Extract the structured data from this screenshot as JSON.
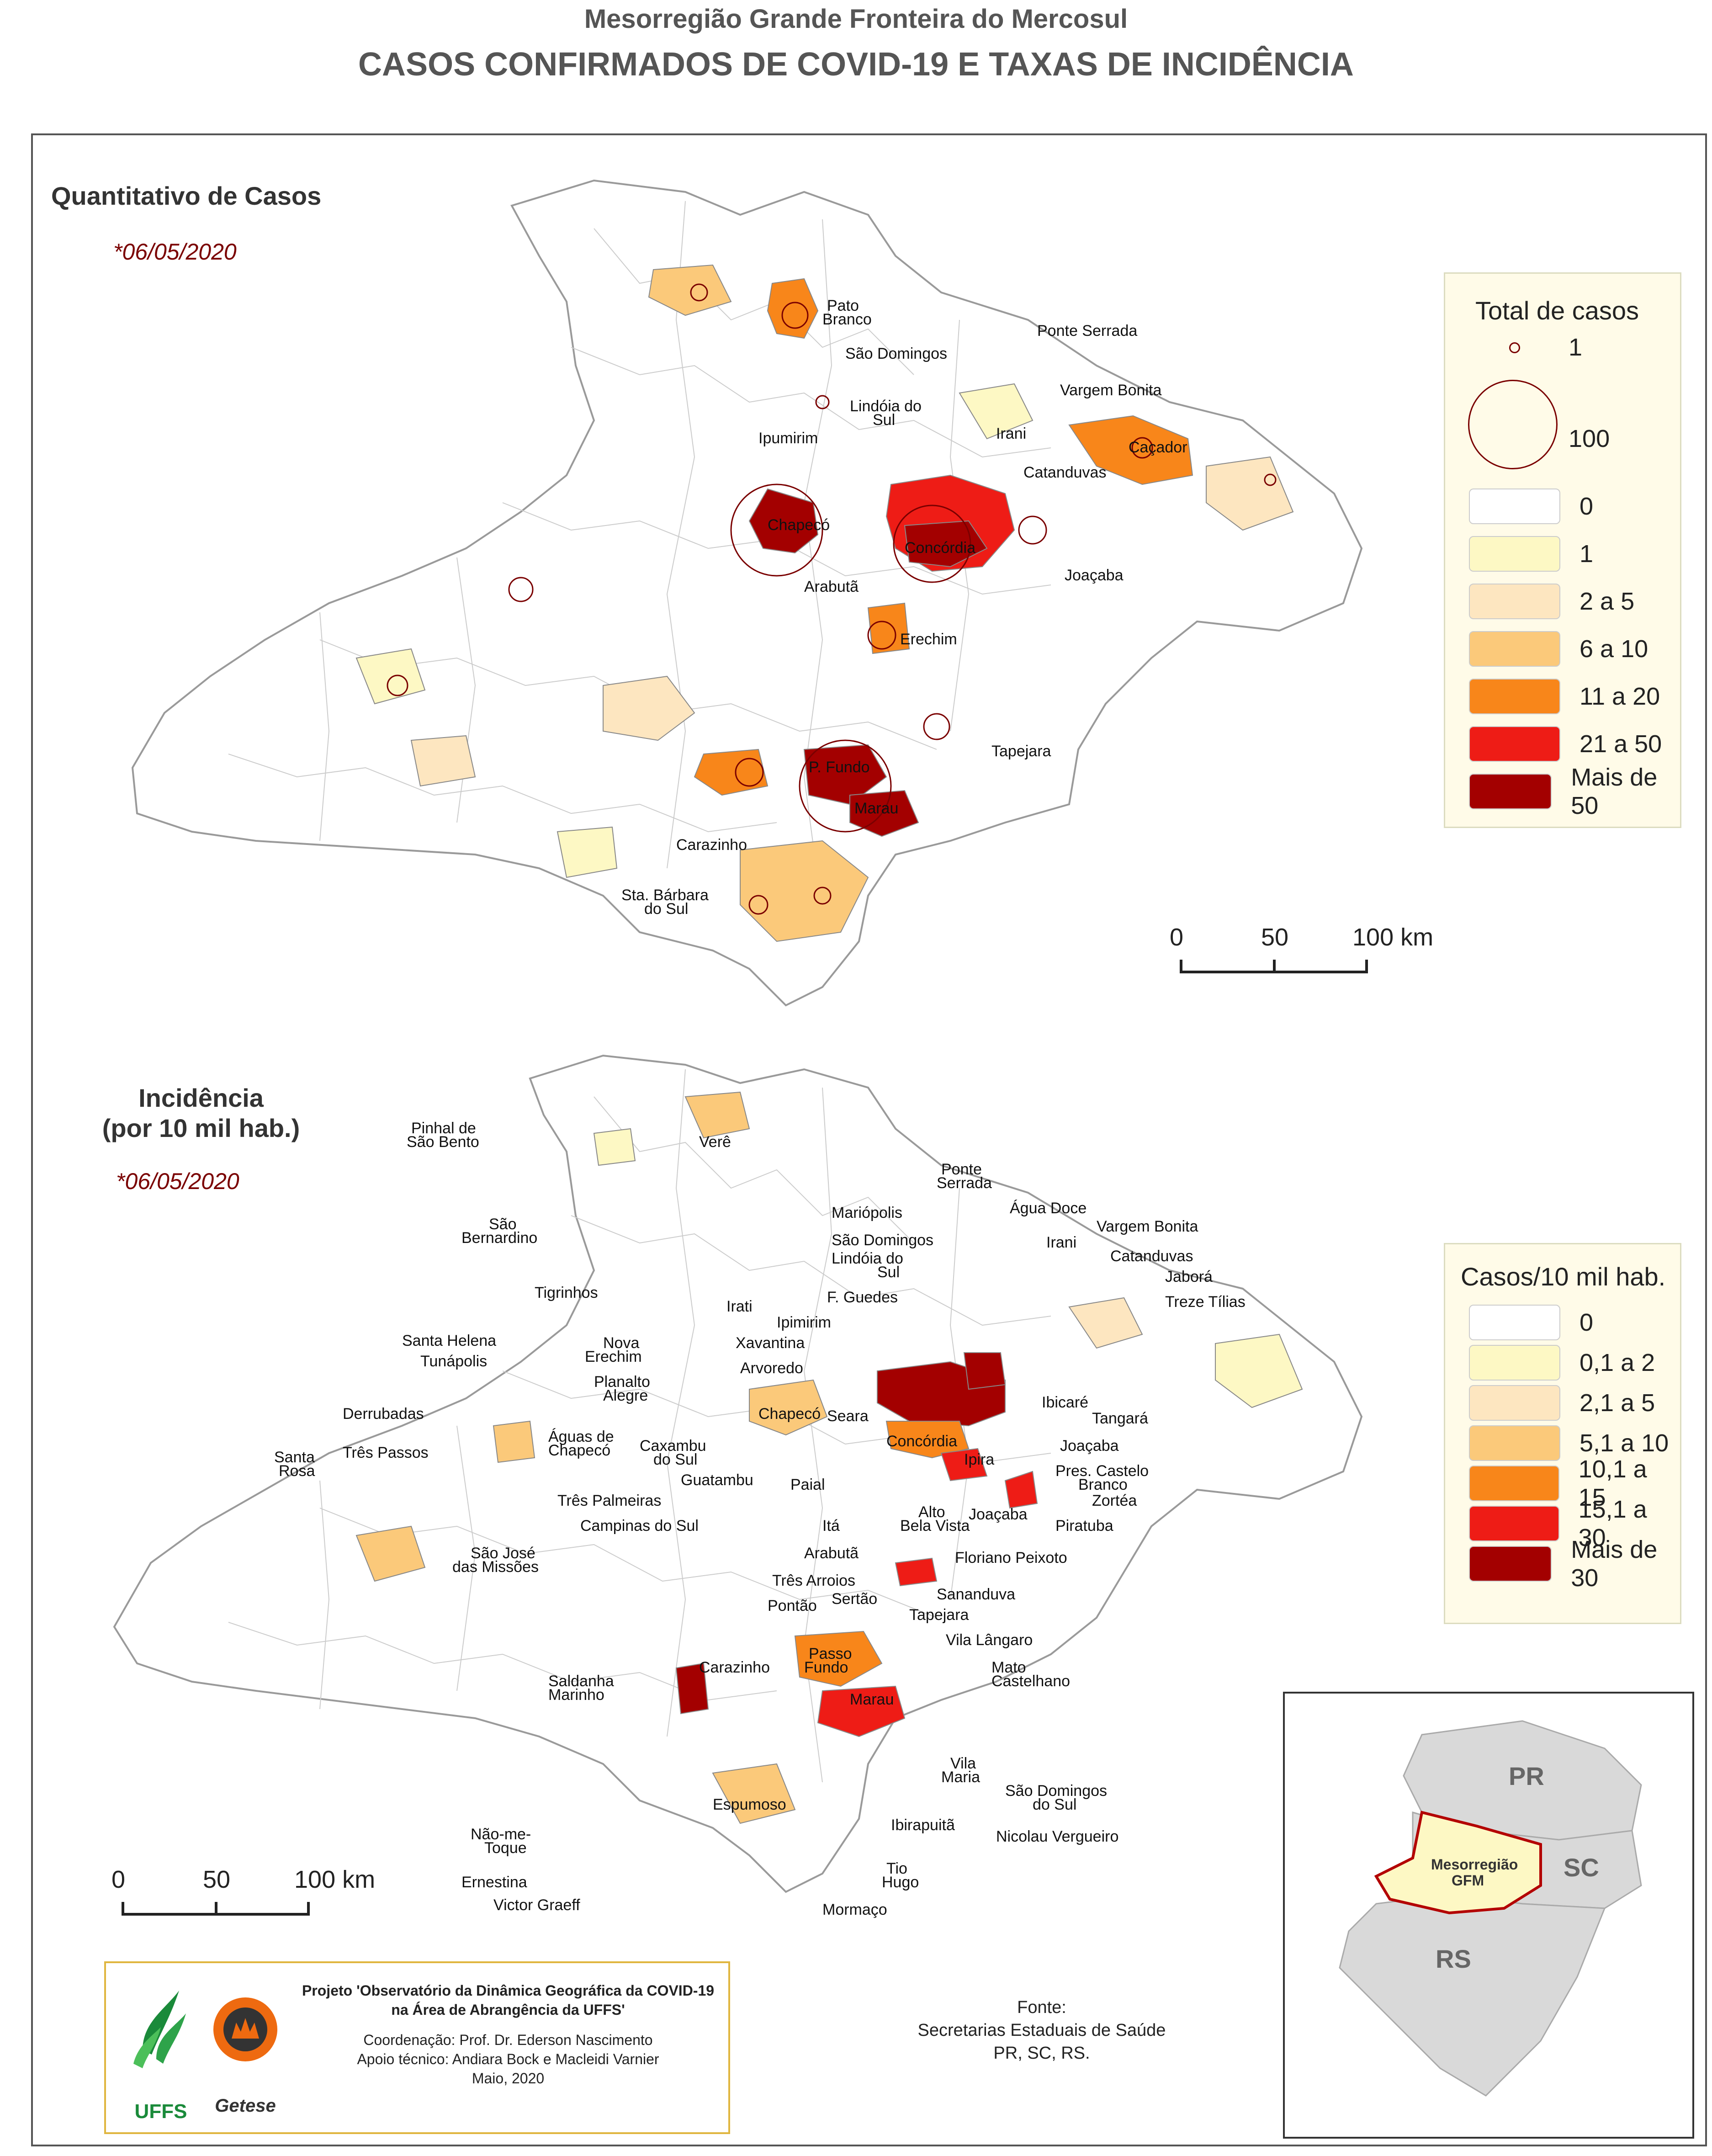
{
  "header": {
    "title": "Mesorregião Grande Fronteira do Mercosul",
    "subtitle": "CASOS CONFIRMADOS DE COVID-19 E TAXAS DE INCIDÊNCIA"
  },
  "cases_map": {
    "title": "Quantitativo de Casos",
    "date": "*06/05/2020",
    "legend": {
      "title": "Total de casos",
      "circle_small": "1",
      "circle_large": "100",
      "classes": [
        {
          "label": "0",
          "color": "#ffffff"
        },
        {
          "label": "1",
          "color": "#fdf8c4"
        },
        {
          "label": "2 a 5",
          "color": "#fde6c0"
        },
        {
          "label": "6 a 10",
          "color": "#fbc97a"
        },
        {
          "label": "11 a 20",
          "color": "#f8861a"
        },
        {
          "label": "21 a 50",
          "color": "#ee1c16"
        },
        {
          "label": "Mais de 50",
          "color": "#a30000"
        }
      ]
    },
    "scale": [
      "0",
      "50",
      "100 km"
    ],
    "labels": [
      "Pato Branco",
      "São Domingos",
      "Ponte Serrada",
      "Vargem Bonita",
      "Lindóia do Sul",
      "Irani",
      "Caçador",
      "Ipumirim",
      "Catanduvas",
      "Chapecó",
      "Concórdia",
      "Joaçaba",
      "Arabutã",
      "Erechim",
      "Tapejara",
      "P. Fundo",
      "Marau",
      "Carazinho",
      "Sta. Bárbara do Sul"
    ]
  },
  "incidence_map": {
    "title": "Incidência",
    "title_sub": "(por 10 mil hab.)",
    "date": "*06/05/2020",
    "legend": {
      "title": "Casos/10 mil hab.",
      "classes": [
        {
          "label": "0",
          "color": "#ffffff"
        },
        {
          "label": "0,1 a 2",
          "color": "#fdf8c4"
        },
        {
          "label": "2,1 a 5",
          "color": "#fde6c0"
        },
        {
          "label": "5,1 a 10",
          "color": "#fbc97a"
        },
        {
          "label": "10,1 a 15",
          "color": "#f8861a"
        },
        {
          "label": "15,1 a 30",
          "color": "#ee1c16"
        },
        {
          "label": "Mais de 30",
          "color": "#a30000"
        }
      ]
    },
    "scale": [
      "0",
      "50",
      "100 km"
    ],
    "labels": [
      "Pinhal de São Bento",
      "Verê",
      "Ponte Serrada",
      "Água Doce",
      "Mariópolis",
      "Vargem Bonita",
      "São Bernardino",
      "São Domingos",
      "Irani",
      "Lindóia do Sul",
      "Catanduvas",
      "Jaborá",
      "F. Guedes",
      "Treze Tílias",
      "Tigrinhos",
      "Irati",
      "Ipimirim",
      "Santa Helena",
      "Xavantina",
      "Nova Erechim",
      "Tunápolis",
      "Arvoredo",
      "Planalto Alegre",
      "Ibicaré",
      "Tangará",
      "Derrubadas",
      "Chapecó",
      "Seara",
      "Concórdia",
      "Joaçaba",
      "Águas de Chapecó",
      "Caxambu do Sul",
      "Santa Rosa",
      "Três Passos",
      "Pres. Castelo Branco",
      "Guatambu",
      "Paial",
      "Ipira",
      "Zortéa",
      "Três Palmeiras",
      "Alto Bela Vista",
      "Joaçaba",
      "Piratuba",
      "Campinas do Sul",
      "Itá",
      "São José das Missões",
      "Arabutã",
      "Floriano Peixoto",
      "Três Arroios",
      "Sananduva",
      "Pontão",
      "Sertão",
      "Tapejara",
      "Vila Lângaro",
      "Passo Fundo",
      "Saldanha Marinho",
      "Carazinho",
      "Mato Castelhano",
      "Marau",
      "Vila Maria",
      "São Domingos do Sul",
      "Espumoso",
      "Ibirapuitã",
      "Não-me-Toque",
      "Nicolau Vergueiro",
      "Tio Hugo",
      "Ernestina",
      "Victor Graeff",
      "Mormaço"
    ]
  },
  "credits": {
    "line1": "Projeto 'Observatório da Dinâmica Geográfica da COVID-19",
    "line2": "na Área de Abrangência da UFFS'",
    "line3": "Coordenação: Prof. Dr. Ederson Nascimento",
    "line4": "Apoio técnico: Andiara Bock e Macleidi Varnier",
    "line5": "Maio, 2020",
    "logo1": "UFFS",
    "logo2": "Getese"
  },
  "source": {
    "line1": "Fonte:",
    "line2": "Secretarias Estaduais de Saúde",
    "line3": "PR, SC, RS."
  },
  "inset": {
    "pr": "PR",
    "sc": "SC",
    "rs": "RS",
    "region_line1": "Mesorregião",
    "region_line2": "GFM"
  }
}
